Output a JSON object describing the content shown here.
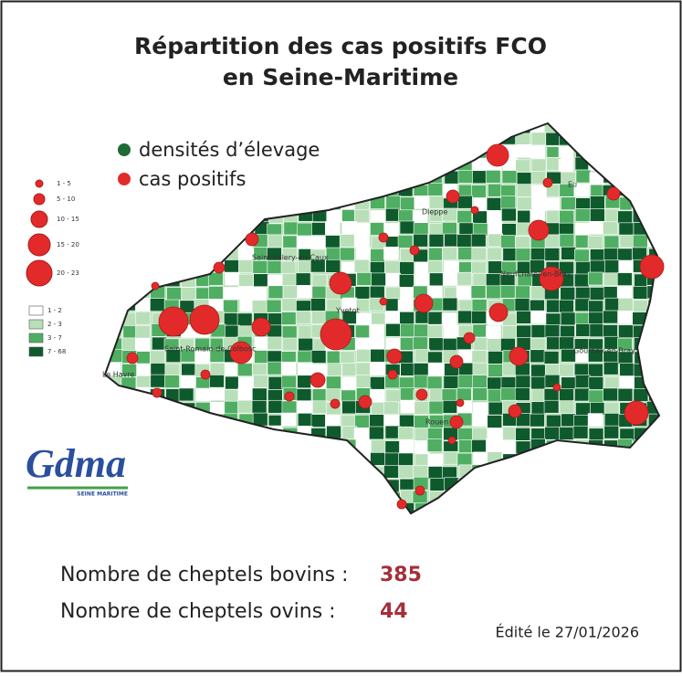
{
  "header": {
    "title_line_1": "Répartition des cas positifs FCO",
    "title_line_2": "en Seine-Maritime"
  },
  "legend": {
    "density": "densités d’élevage",
    "cases": "cas positifs",
    "size_classes": [
      "1 - 5",
      "5 - 10",
      "10 - 15",
      "15 - 20",
      "20 - 23"
    ],
    "density_classes": [
      "1 - 2",
      "2 - 3",
      "3 - 7",
      "7 - 68"
    ]
  },
  "towns": [
    "Dieppe",
    "Eu",
    "Saint-Valery-en-Caux",
    "Neufchâtel-en-Bray",
    "Yvetot",
    "Saint-Romain-de-Colbosc",
    "Le Havre",
    "Gournay-en-Bray",
    "Rouen"
  ],
  "logo": {
    "name": "Gdma",
    "sub": "SEINE MARITIME"
  },
  "stats": {
    "bovins_label": "Nombre de cheptels bovins :",
    "bovins_value": "385",
    "ovins_label": "Nombre de cheptels ovins :",
    "ovins_value": "44"
  },
  "footer": {
    "edited": "Édité le 27/01/2026"
  }
}
